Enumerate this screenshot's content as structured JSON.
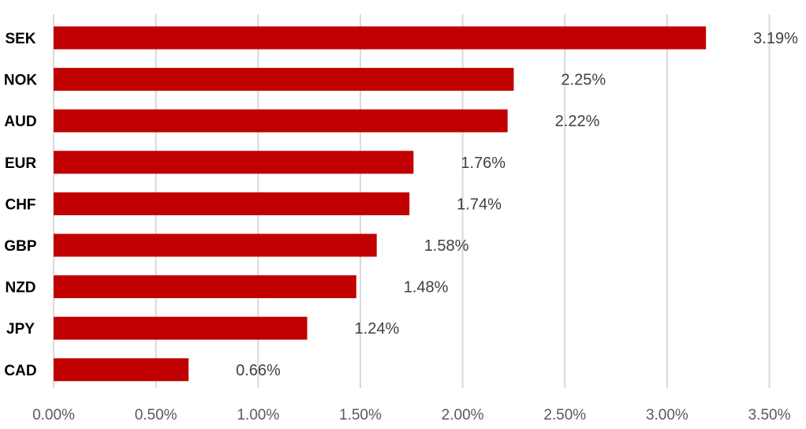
{
  "chart_data": {
    "type": "bar",
    "orientation": "horizontal",
    "categories": [
      "SEK",
      "NOK",
      "AUD",
      "EUR",
      "CHF",
      "GBP",
      "NZD",
      "JPY",
      "CAD"
    ],
    "values": [
      3.19,
      2.25,
      2.22,
      1.76,
      1.74,
      1.58,
      1.48,
      1.24,
      0.66
    ],
    "data_labels": [
      "3.19%",
      "2.25%",
      "2.22%",
      "1.76%",
      "1.74%",
      "1.58%",
      "1.48%",
      "1.24%",
      "0.66%"
    ],
    "x_ticks": [
      0,
      0.5,
      1.0,
      1.5,
      2.0,
      2.5,
      3.0,
      3.5
    ],
    "x_tick_labels": [
      "0.00%",
      "0.50%",
      "1.00%",
      "1.50%",
      "2.00%",
      "2.50%",
      "3.00%",
      "3.50%"
    ],
    "xlim": [
      0,
      3.5
    ],
    "title": "",
    "xlabel": "",
    "ylabel": "",
    "grid": "vertical",
    "legend": "none",
    "bar_color": "#c00000"
  }
}
